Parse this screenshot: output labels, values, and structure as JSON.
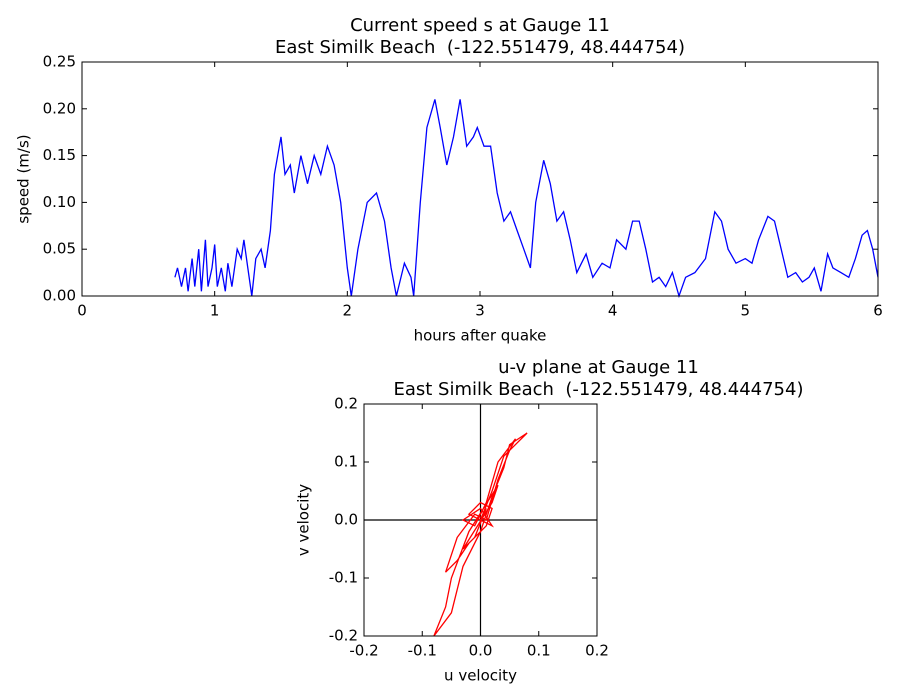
{
  "chart_data": [
    {
      "type": "line",
      "title": "Current speed s at Gauge 11",
      "subtitle": "East Similk Beach  (-122.551479, 48.444754)",
      "xlabel": "hours after quake",
      "ylabel": "speed (m/s)",
      "color": "#0000ff",
      "xlim": [
        0,
        6
      ],
      "xticks": [
        0,
        1,
        2,
        3,
        4,
        5,
        6
      ],
      "ylim": [
        0,
        0.25
      ],
      "yticks": [
        {
          "value": 0,
          "label": "0.00"
        },
        0.05,
        {
          "value": 0.1,
          "label": "0.10"
        },
        0.15,
        {
          "value": 0.2,
          "label": "0.20"
        },
        0.25
      ],
      "x": [
        0.7,
        0.72,
        0.75,
        0.78,
        0.8,
        0.83,
        0.85,
        0.88,
        0.9,
        0.93,
        0.95,
        0.98,
        1.0,
        1.02,
        1.05,
        1.08,
        1.1,
        1.13,
        1.17,
        1.2,
        1.22,
        1.25,
        1.28,
        1.31,
        1.35,
        1.38,
        1.42,
        1.45,
        1.5,
        1.53,
        1.57,
        1.6,
        1.65,
        1.7,
        1.75,
        1.8,
        1.85,
        1.9,
        1.95,
        2.0,
        2.03,
        2.08,
        2.15,
        2.22,
        2.28,
        2.33,
        2.37,
        2.43,
        2.48,
        2.5,
        2.55,
        2.6,
        2.66,
        2.7,
        2.75,
        2.8,
        2.85,
        2.9,
        2.95,
        2.98,
        3.03,
        3.08,
        3.13,
        3.18,
        3.23,
        3.28,
        3.33,
        3.38,
        3.42,
        3.48,
        3.53,
        3.58,
        3.63,
        3.68,
        3.73,
        3.8,
        3.85,
        3.92,
        3.98,
        4.03,
        4.1,
        4.15,
        4.2,
        4.25,
        4.3,
        4.35,
        4.4,
        4.45,
        4.5,
        4.55,
        4.62,
        4.7,
        4.77,
        4.82,
        4.87,
        4.93,
        5.0,
        5.05,
        5.1,
        5.17,
        5.22,
        5.27,
        5.32,
        5.38,
        5.43,
        5.48,
        5.52,
        5.57,
        5.62,
        5.66,
        5.72,
        5.78,
        5.83,
        5.88,
        5.92,
        5.96,
        6.0
      ],
      "values": [
        0.02,
        0.03,
        0.01,
        0.03,
        0.005,
        0.04,
        0.01,
        0.05,
        0.005,
        0.06,
        0.01,
        0.03,
        0.055,
        0.01,
        0.03,
        0.005,
        0.035,
        0.01,
        0.05,
        0.04,
        0.06,
        0.03,
        0.0,
        0.04,
        0.05,
        0.03,
        0.07,
        0.13,
        0.17,
        0.13,
        0.14,
        0.11,
        0.15,
        0.12,
        0.15,
        0.13,
        0.16,
        0.14,
        0.1,
        0.03,
        0.0,
        0.05,
        0.1,
        0.11,
        0.08,
        0.03,
        0.0,
        0.035,
        0.02,
        0.0,
        0.1,
        0.18,
        0.21,
        0.18,
        0.14,
        0.17,
        0.21,
        0.16,
        0.17,
        0.18,
        0.16,
        0.16,
        0.11,
        0.08,
        0.09,
        0.07,
        0.05,
        0.03,
        0.1,
        0.145,
        0.12,
        0.08,
        0.09,
        0.06,
        0.025,
        0.045,
        0.02,
        0.035,
        0.03,
        0.06,
        0.05,
        0.08,
        0.08,
        0.05,
        0.015,
        0.02,
        0.01,
        0.025,
        0.0,
        0.02,
        0.025,
        0.04,
        0.09,
        0.08,
        0.05,
        0.035,
        0.04,
        0.035,
        0.06,
        0.085,
        0.08,
        0.05,
        0.02,
        0.025,
        0.015,
        0.02,
        0.03,
        0.005,
        0.045,
        0.03,
        0.025,
        0.02,
        0.04,
        0.065,
        0.07,
        0.05,
        0.02
      ]
    },
    {
      "type": "line",
      "title": "u-v plane at Gauge 11",
      "subtitle": "East Similk Beach  (-122.551479, 48.444754)",
      "xlabel": "u velocity",
      "ylabel": "v velocity",
      "color": "#ff0000",
      "xlim": [
        -0.2,
        0.2
      ],
      "xticks": [
        -0.2,
        -0.1,
        {
          "value": 0,
          "label": "0.0"
        },
        0.1,
        0.2
      ],
      "ylim": [
        -0.2,
        0.2
      ],
      "yticks": [
        -0.2,
        -0.1,
        {
          "value": 0,
          "label": "0.0"
        },
        0.1,
        0.2
      ],
      "x": [
        0,
        0.01,
        -0.01,
        -0.03,
        0.02,
        0.03,
        -0.02,
        -0.05,
        -0.06,
        -0.08,
        -0.05,
        -0.03,
        0.0,
        0.02,
        0.04,
        0.05,
        0.08,
        0.04,
        0.02,
        0.0,
        -0.02,
        0.0,
        0.02,
        0.01,
        -0.02,
        -0.04,
        -0.06,
        -0.04,
        -0.01,
        0.01,
        0.03,
        0.05,
        0.06,
        0.03,
        0.01,
        -0.01,
        -0.03,
        0.0,
        0.02,
        0.0
      ],
      "values": [
        0,
        0.02,
        -0.03,
        -0.05,
        0.03,
        0.06,
        -0.02,
        -0.1,
        -0.15,
        -0.2,
        -0.16,
        -0.08,
        -0.02,
        0.04,
        0.09,
        0.13,
        0.15,
        0.11,
        0.05,
        0.0,
        0.01,
        0.03,
        0.02,
        -0.01,
        -0.04,
        -0.07,
        -0.09,
        -0.03,
        0.01,
        0.0,
        0.07,
        0.12,
        0.14,
        0.1,
        0.03,
        -0.01,
        0.0,
        0.02,
        -0.01,
        0.0
      ]
    }
  ]
}
